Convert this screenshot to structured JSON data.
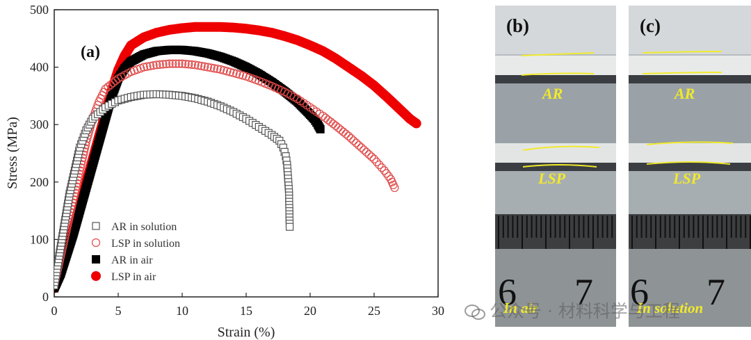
{
  "chart_data": {
    "type": "scatter",
    "panel_label": "(a)",
    "xlabel": "Strain (%)",
    "ylabel": "Stress (MPa)",
    "xlim": [
      0,
      30
    ],
    "ylim": [
      0,
      500
    ],
    "xticks": [
      0,
      5,
      10,
      15,
      20,
      25,
      30
    ],
    "yticks": [
      0,
      100,
      200,
      300,
      400,
      500
    ],
    "grid": false,
    "legend_position": "bottom-left",
    "series": [
      {
        "name": "AR in solution",
        "marker": "open-square",
        "color": "#555555",
        "points": [
          [
            0,
            20
          ],
          [
            0.3,
            60
          ],
          [
            0.6,
            100
          ],
          [
            0.9,
            140
          ],
          [
            1.2,
            180
          ],
          [
            1.6,
            220
          ],
          [
            2,
            260
          ],
          [
            2.5,
            290
          ],
          [
            3,
            310
          ],
          [
            4,
            330
          ],
          [
            5,
            342
          ],
          [
            6,
            348
          ],
          [
            7,
            352
          ],
          [
            8,
            353
          ],
          [
            9,
            352
          ],
          [
            10,
            350
          ],
          [
            11,
            346
          ],
          [
            12,
            340
          ],
          [
            13,
            332
          ],
          [
            14,
            322
          ],
          [
            15,
            310
          ],
          [
            16,
            296
          ],
          [
            17,
            282
          ],
          [
            17.6,
            272
          ],
          [
            17.9,
            260
          ],
          [
            18.1,
            245
          ],
          [
            18.2,
            230
          ],
          [
            18.35,
            182
          ],
          [
            18.4,
            122
          ]
        ]
      },
      {
        "name": "LSP in solution",
        "marker": "open-circle",
        "color": "#e04848",
        "points": [
          [
            0,
            20
          ],
          [
            0.5,
            70
          ],
          [
            1,
            120
          ],
          [
            1.5,
            170
          ],
          [
            2,
            220
          ],
          [
            2.5,
            270
          ],
          [
            3,
            310
          ],
          [
            3.5,
            340
          ],
          [
            4,
            362
          ],
          [
            5,
            380
          ],
          [
            6,
            392
          ],
          [
            7,
            400
          ],
          [
            8,
            404
          ],
          [
            9,
            406
          ],
          [
            10,
            406
          ],
          [
            11,
            404
          ],
          [
            12,
            400
          ],
          [
            13,
            396
          ],
          [
            14,
            390
          ],
          [
            15,
            384
          ],
          [
            16,
            376
          ],
          [
            17,
            367
          ],
          [
            18,
            357
          ],
          [
            19,
            345
          ],
          [
            20,
            330
          ],
          [
            21,
            315
          ],
          [
            22,
            298
          ],
          [
            23,
            280
          ],
          [
            24,
            260
          ],
          [
            25,
            240
          ],
          [
            25.8,
            220
          ],
          [
            26.3,
            205
          ],
          [
            26.6,
            190
          ]
        ]
      },
      {
        "name": "AR in air",
        "marker": "filled-square",
        "color": "#000000",
        "points": [
          [
            0,
            15
          ],
          [
            0.5,
            40
          ],
          [
            1,
            75
          ],
          [
            1.5,
            110
          ],
          [
            2,
            150
          ],
          [
            2.5,
            190
          ],
          [
            3,
            230
          ],
          [
            3.5,
            270
          ],
          [
            4,
            310
          ],
          [
            4.5,
            350
          ],
          [
            5,
            380
          ],
          [
            5.5,
            398
          ],
          [
            6,
            410
          ],
          [
            7,
            422
          ],
          [
            8,
            428
          ],
          [
            9,
            430
          ],
          [
            10,
            430
          ],
          [
            11,
            428
          ],
          [
            12,
            424
          ],
          [
            13,
            418
          ],
          [
            14,
            410
          ],
          [
            15,
            400
          ],
          [
            16,
            388
          ],
          [
            17,
            374
          ],
          [
            18,
            358
          ],
          [
            19,
            340
          ],
          [
            19.8,
            322
          ],
          [
            20.3,
            310
          ],
          [
            20.6,
            300
          ],
          [
            20.8,
            292
          ]
        ]
      },
      {
        "name": "LSP in air",
        "marker": "filled-circle",
        "color": "#ee0000",
        "points": [
          [
            0,
            15
          ],
          [
            0.5,
            40
          ],
          [
            1,
            80
          ],
          [
            1.5,
            120
          ],
          [
            2,
            160
          ],
          [
            2.5,
            200
          ],
          [
            3,
            240
          ],
          [
            3.5,
            280
          ],
          [
            4,
            320
          ],
          [
            4.5,
            360
          ],
          [
            5,
            395
          ],
          [
            5.5,
            420
          ],
          [
            6,
            438
          ],
          [
            7,
            452
          ],
          [
            8,
            460
          ],
          [
            9,
            465
          ],
          [
            10,
            468
          ],
          [
            11,
            470
          ],
          [
            12,
            470
          ],
          [
            13,
            470
          ],
          [
            14,
            469
          ],
          [
            15,
            467
          ],
          [
            16,
            464
          ],
          [
            17,
            460
          ],
          [
            18,
            454
          ],
          [
            19,
            447
          ],
          [
            20,
            438
          ],
          [
            21,
            428
          ],
          [
            22,
            415
          ],
          [
            23,
            400
          ],
          [
            24,
            385
          ],
          [
            25,
            368
          ],
          [
            26,
            348
          ],
          [
            27,
            327
          ],
          [
            27.8,
            310
          ],
          [
            28.3,
            302
          ]
        ]
      }
    ]
  },
  "panels": [
    {
      "label": "(b)",
      "top_specimen": "AR",
      "bottom_specimen": "LSP",
      "environment": "In air"
    },
    {
      "label": "(c)",
      "top_specimen": "AR",
      "bottom_specimen": "LSP",
      "environment": "In solution"
    }
  ],
  "ruler_numbers": [
    "6",
    "7"
  ],
  "watermark": "公众号 · 材料科学与工程"
}
